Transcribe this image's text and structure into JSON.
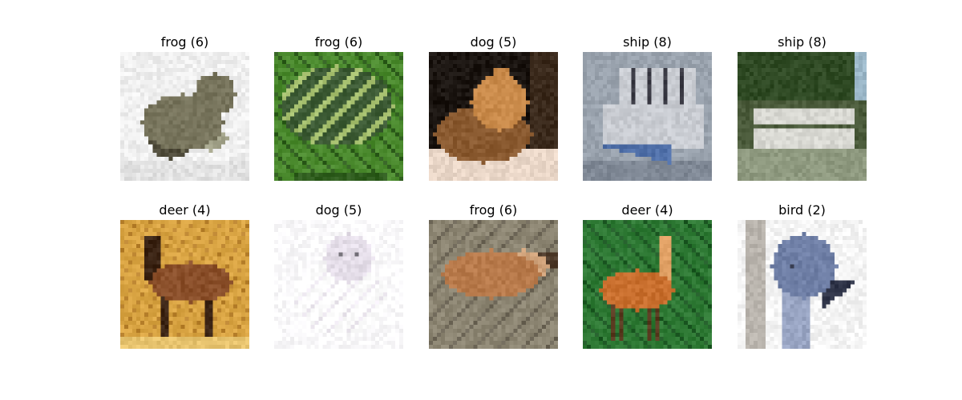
{
  "figure": {
    "rows": 2,
    "cols": 5,
    "panels": [
      {
        "title": "frog (6)",
        "subject": "frog",
        "subject_icon": "frog-photo",
        "palette": {
          "bg": "#efefef",
          "bg2": "#e2e2e2",
          "main": "#77745c",
          "light": "#a3a38a",
          "dark": "#4e4a39"
        }
      },
      {
        "title": "frog (6)",
        "subject": "frog",
        "subject_icon": "frog-photo",
        "palette": {
          "bg": "#4b8a2e",
          "bg2": "#2f5d1e",
          "main": "#3c5a34",
          "light": "#a6c06f",
          "dark": "#203a17"
        }
      },
      {
        "title": "dog (5)",
        "subject": "dog",
        "subject_icon": "dog-photo",
        "palette": {
          "bg": "#1a1410",
          "bg2": "#3b2a1c",
          "main": "#c98a4a",
          "light": "#ead7c8",
          "dark": "#8a5a30"
        }
      },
      {
        "title": "ship (8)",
        "subject": "ship",
        "subject_icon": "ship-photo",
        "palette": {
          "bg": "#9aa3ae",
          "bg2": "#7f8895",
          "main": "#c9ccd2",
          "light": "#4f6fa8",
          "dark": "#3a3a44"
        }
      },
      {
        "title": "ship (8)",
        "subject": "ship",
        "subject_icon": "ship-photo",
        "palette": {
          "bg": "#2f4a24",
          "bg2": "#9bb7c8",
          "main": "#d8d8d2",
          "light": "#8f9a80",
          "dark": "#4a5a3a"
        }
      },
      {
        "title": "deer (4)",
        "subject": "deer",
        "subject_icon": "deer-photo",
        "palette": {
          "bg": "#d9a443",
          "bg2": "#b9822e",
          "main": "#8a4f2a",
          "light": "#e7c36e",
          "dark": "#3b2414"
        }
      },
      {
        "title": "dog (5)",
        "subject": "dog",
        "subject_icon": "dog-photo",
        "palette": {
          "bg": "#fbfafc",
          "bg2": "#efeaf2",
          "main": "#e4dde8",
          "light": "#ffffff",
          "dark": "#6b6870"
        }
      },
      {
        "title": "frog (6)",
        "subject": "frog",
        "subject_icon": "frog-photo",
        "palette": {
          "bg": "#8d8673",
          "bg2": "#6d6657",
          "main": "#b87a4b",
          "light": "#cfa27a",
          "dark": "#4e3a2a"
        }
      },
      {
        "title": "deer (4)",
        "subject": "deer",
        "subject_icon": "deer-photo",
        "palette": {
          "bg": "#2f7a35",
          "bg2": "#1f5a26",
          "main": "#c96f2e",
          "light": "#e0a064",
          "dark": "#5a3a20"
        }
      },
      {
        "title": "bird (2)",
        "subject": "bird",
        "subject_icon": "bird-photo",
        "palette": {
          "bg": "#f4f4f4",
          "bg2": "#b9b4ad",
          "main": "#6f7fa6",
          "light": "#9aa6c4",
          "dark": "#2f3448"
        }
      }
    ]
  }
}
